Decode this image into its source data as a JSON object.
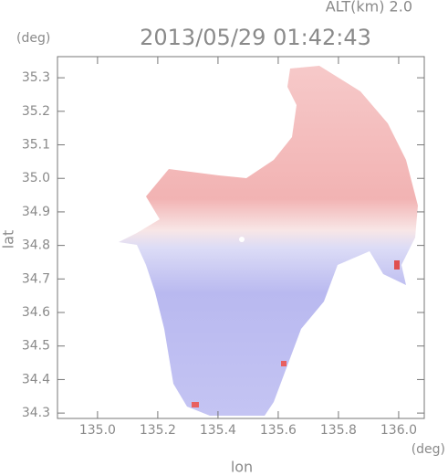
{
  "chart_data": {
    "type": "heatmap",
    "title": "2013/05/29 01:42:43",
    "subtitle": "ALT(km) 2.0",
    "xlabel": "lon",
    "ylabel": "lat",
    "x_unit": "(deg)",
    "y_unit": "(deg)",
    "xlim": [
      134.867,
      136.085
    ],
    "ylim": [
      34.284,
      35.363
    ],
    "xticks": [
      {
        "value": 135.0,
        "label": "135.0"
      },
      135.2,
      135.4,
      135.6,
      135.8,
      {
        "value": 136.0,
        "label": "136.0"
      }
    ],
    "yticks": [
      34.3,
      34.4,
      34.5,
      34.6,
      34.7,
      34.8,
      34.9,
      {
        "value": 35.0,
        "label": "35.0"
      },
      35.1,
      35.2,
      35.3
    ]
  }
}
